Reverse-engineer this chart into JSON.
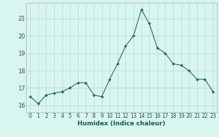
{
  "x": [
    0,
    1,
    2,
    3,
    4,
    5,
    6,
    7,
    8,
    9,
    10,
    11,
    12,
    13,
    14,
    15,
    16,
    17,
    18,
    19,
    20,
    21,
    22,
    23
  ],
  "y": [
    16.5,
    16.1,
    16.6,
    16.7,
    16.8,
    17.0,
    17.3,
    17.3,
    16.6,
    16.5,
    17.5,
    18.4,
    19.4,
    20.0,
    21.5,
    20.7,
    19.3,
    19.0,
    18.4,
    18.3,
    18.0,
    17.5,
    17.5,
    16.8
  ],
  "line_color": "#1a6b5a",
  "marker": "D",
  "marker_size": 2.0,
  "linewidth": 0.8,
  "xlabel": "Humidex (Indice chaleur)",
  "bg_color": "#d8f5f0",
  "grid_color": "#b8ddd8",
  "yticks": [
    16,
    17,
    18,
    19,
    20,
    21
  ],
  "xtick_labels": [
    "0",
    "1",
    "2",
    "3",
    "4",
    "5",
    "6",
    "7",
    "8",
    "9",
    "10",
    "11",
    "12",
    "13",
    "14",
    "15",
    "16",
    "17",
    "18",
    "19",
    "20",
    "21",
    "22",
    "23"
  ],
  "ylim": [
    15.6,
    21.9
  ],
  "xlim": [
    -0.5,
    23.5
  ],
  "xlabel_fontsize": 6.5,
  "xlabel_color": "#1a5a4a",
  "tick_fontsize": 5.5,
  "ytick_fontsize": 6.0
}
